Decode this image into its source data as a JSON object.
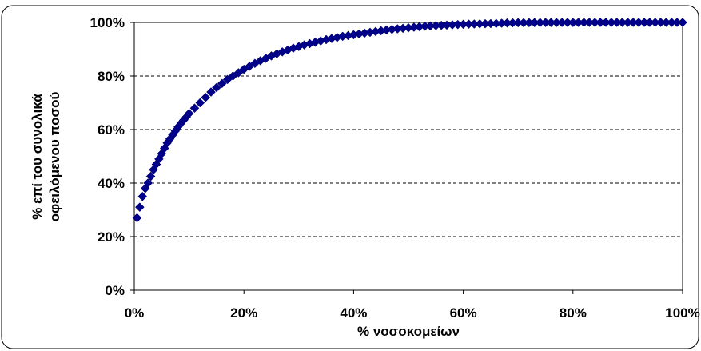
{
  "chart_data": {
    "type": "scatter",
    "title": "",
    "xlabel": "% νοσοκομείων",
    "ylabel_lines": [
      "% επί του συνολικά",
      "οφειλόμενου ποσού"
    ],
    "xlim": [
      0,
      100
    ],
    "ylim": [
      0,
      100
    ],
    "x_ticks": [
      0,
      20,
      40,
      60,
      80,
      100
    ],
    "y_ticks": [
      0,
      20,
      40,
      60,
      80,
      100
    ],
    "x_tick_labels": [
      "0%",
      "20%",
      "40%",
      "60%",
      "80%",
      "100%"
    ],
    "y_tick_labels": [
      "0%",
      "20%",
      "40%",
      "60%",
      "80%",
      "100%"
    ],
    "grid": "horizontal-dashed",
    "legend": "none",
    "marker": "diamond",
    "marker_color": "#00008B",
    "series": [
      {
        "points": [
          [
            0.5,
            27
          ],
          [
            1,
            31
          ],
          [
            1.5,
            35
          ],
          [
            2,
            38
          ],
          [
            2.5,
            40
          ],
          [
            3,
            42.5
          ],
          [
            3.5,
            45
          ],
          [
            4,
            47
          ],
          [
            4.5,
            49
          ],
          [
            5,
            51
          ],
          [
            5.5,
            53
          ],
          [
            6,
            55
          ],
          [
            6.5,
            56.5
          ],
          [
            7,
            58
          ],
          [
            7.5,
            59.5
          ],
          [
            8,
            61
          ],
          [
            8.5,
            62.3
          ],
          [
            9,
            63.5
          ],
          [
            9.5,
            64.7
          ],
          [
            10,
            66
          ],
          [
            11,
            68
          ],
          [
            12,
            70
          ],
          [
            13,
            72
          ],
          [
            14,
            74
          ],
          [
            15,
            75.7
          ],
          [
            16,
            77.2
          ],
          [
            17,
            78.7
          ],
          [
            18,
            80
          ],
          [
            19,
            81.2
          ],
          [
            20,
            82.5
          ],
          [
            21,
            83.6
          ],
          [
            22,
            84.7
          ],
          [
            23,
            85.7
          ],
          [
            24,
            86.6
          ],
          [
            25,
            87.5
          ],
          [
            26,
            88.3
          ],
          [
            27,
            89
          ],
          [
            28,
            89.7
          ],
          [
            29,
            90.4
          ],
          [
            30,
            91
          ],
          [
            31,
            91.6
          ],
          [
            32,
            92.1
          ],
          [
            33,
            92.6
          ],
          [
            34,
            93.1
          ],
          [
            35,
            93.6
          ],
          [
            36,
            94
          ],
          [
            37,
            94.4
          ],
          [
            38,
            94.8
          ],
          [
            39,
            95.1
          ],
          [
            40,
            95.4
          ],
          [
            41,
            95.7
          ],
          [
            42,
            96
          ],
          [
            43,
            96.3
          ],
          [
            44,
            96.6
          ],
          [
            45,
            96.9
          ],
          [
            46,
            97.2
          ],
          [
            47,
            97.4
          ],
          [
            48,
            97.6
          ],
          [
            49,
            97.8
          ],
          [
            50,
            98
          ],
          [
            51,
            98.2
          ],
          [
            52,
            98.4
          ],
          [
            53,
            98.6
          ],
          [
            54,
            98.7
          ],
          [
            55,
            98.8
          ],
          [
            56,
            98.9
          ],
          [
            57,
            99
          ],
          [
            58,
            99.1
          ],
          [
            59,
            99.2
          ],
          [
            60,
            99.3
          ],
          [
            61,
            99.35
          ],
          [
            62,
            99.4
          ],
          [
            63,
            99.45
          ],
          [
            64,
            99.5
          ],
          [
            65,
            99.55
          ],
          [
            66,
            99.6
          ],
          [
            67,
            99.7
          ],
          [
            68,
            99.8
          ],
          [
            69,
            99.85
          ],
          [
            70,
            99.9
          ],
          [
            71,
            99.9
          ],
          [
            72,
            99.92
          ],
          [
            73,
            99.93
          ],
          [
            74,
            99.94
          ],
          [
            75,
            99.95
          ],
          [
            76,
            99.96
          ],
          [
            77,
            99.97
          ],
          [
            78,
            99.97
          ],
          [
            79,
            99.98
          ],
          [
            80,
            99.98
          ],
          [
            81,
            99.98
          ],
          [
            82,
            99.99
          ],
          [
            83,
            99.99
          ],
          [
            84,
            99.99
          ],
          [
            85,
            99.99
          ],
          [
            86,
            100
          ],
          [
            87,
            100
          ],
          [
            88,
            100
          ],
          [
            89,
            100
          ],
          [
            90,
            100
          ],
          [
            91,
            100
          ],
          [
            92,
            100
          ],
          [
            93,
            100
          ],
          [
            94,
            100
          ],
          [
            95,
            100
          ],
          [
            96,
            100
          ],
          [
            97,
            100
          ],
          [
            98,
            100
          ],
          [
            99,
            100
          ],
          [
            100,
            100
          ]
        ]
      }
    ]
  }
}
